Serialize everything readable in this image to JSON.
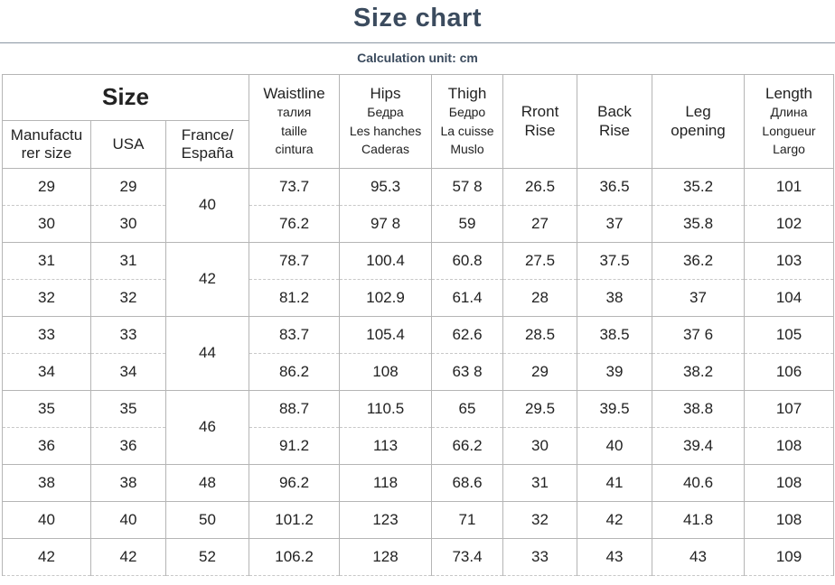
{
  "header": {
    "title": "Size chart",
    "subtitle": "Calculation unit: cm"
  },
  "table": {
    "size_header": "Size",
    "size_columns": [
      [
        "Manufactu",
        "rer size"
      ],
      [
        "USA"
      ],
      [
        "France/",
        "España"
      ]
    ],
    "measure_columns": [
      [
        "Waistline",
        "талия",
        "taille",
        "cintura"
      ],
      [
        "Hips",
        "Бедра",
        "Les hanches",
        "Caderas"
      ],
      [
        "Thigh",
        "Бедро",
        "La cuisse",
        "Muslo"
      ],
      [
        "Rront",
        "Rise"
      ],
      [
        "Back",
        "Rise"
      ],
      [
        "Leg",
        "opening"
      ],
      [
        "Length",
        "Длина",
        "Longueur",
        "Largo"
      ]
    ],
    "france": [
      40,
      42,
      44,
      46,
      48,
      50,
      52
    ],
    "rows": [
      [
        29,
        29,
        73.7,
        95.3,
        "57 8",
        26.5,
        36.5,
        35.2,
        101
      ],
      [
        30,
        30,
        76.2,
        "97 8",
        59,
        27,
        37,
        35.8,
        102
      ],
      [
        31,
        31,
        78.7,
        100.4,
        60.8,
        27.5,
        37.5,
        36.2,
        103
      ],
      [
        32,
        32,
        81.2,
        102.9,
        61.4,
        28,
        38,
        37,
        104
      ],
      [
        33,
        33,
        83.7,
        105.4,
        62.6,
        28.5,
        38.5,
        "37 6",
        105
      ],
      [
        34,
        34,
        86.2,
        108,
        "63 8",
        29,
        39,
        38.2,
        106
      ],
      [
        35,
        35,
        88.7,
        110.5,
        65,
        29.5,
        39.5,
        38.8,
        107
      ],
      [
        36,
        36,
        91.2,
        113,
        66.2,
        30,
        40,
        39.4,
        108
      ],
      [
        38,
        38,
        96.2,
        118,
        68.6,
        31,
        41,
        40.6,
        108
      ],
      [
        40,
        40,
        101.2,
        123,
        71,
        32,
        42,
        41.8,
        108
      ],
      [
        42,
        42,
        106.2,
        128,
        73.4,
        33,
        43,
        43,
        109
      ]
    ]
  }
}
